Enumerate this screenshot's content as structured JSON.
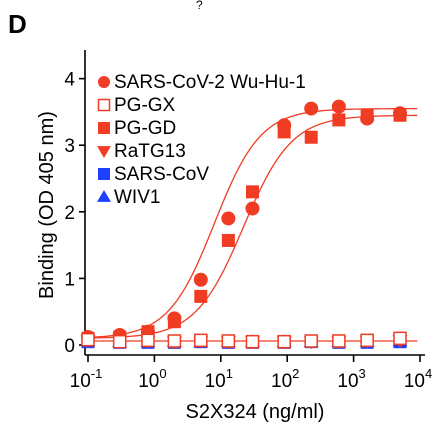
{
  "panel_label": "D",
  "top_fragment": "?",
  "chart_data": {
    "type": "scatter",
    "title": "",
    "xlabel": "S2X324 (ng/ml)",
    "ylabel": "Binding (OD 405 nm)",
    "xscale": "log",
    "xlim": [
      0.1,
      10000
    ],
    "ylim": [
      0,
      4.4
    ],
    "x_ticks": [
      0.1,
      1,
      10,
      100,
      1000,
      10000
    ],
    "x_tick_labels": [
      {
        "base": "10",
        "exp": "-1"
      },
      {
        "base": "10",
        "exp": "0"
      },
      {
        "base": "10",
        "exp": "1"
      },
      {
        "base": "10",
        "exp": "2"
      },
      {
        "base": "10",
        "exp": "3"
      },
      {
        "base": "10",
        "exp": "4"
      }
    ],
    "y_ticks": [
      0,
      1,
      2,
      3,
      4
    ],
    "y_tick_labels": [
      "0",
      "1",
      "2",
      "3",
      "4"
    ],
    "grid": false,
    "legend_position": "top-left",
    "x": [
      0.1,
      0.3,
      0.8,
      2,
      5,
      13,
      30,
      90,
      230,
      600,
      1600,
      5000
    ],
    "series": [
      {
        "name": "SARS-CoV-2 Wu-Hu-1",
        "marker": "circle",
        "filled": true,
        "color": "#f03c23",
        "y": [
          0.12,
          0.15,
          0.2,
          0.4,
          0.98,
          1.9,
          2.05,
          3.3,
          3.55,
          3.58,
          3.4,
          3.48
        ]
      },
      {
        "name": "PG-GX",
        "marker": "square",
        "filled": false,
        "color": "#f03c23",
        "y": [
          0.08,
          0.05,
          0.07,
          0.06,
          0.07,
          0.06,
          0.05,
          0.05,
          0.06,
          0.06,
          0.07,
          0.1
        ]
      },
      {
        "name": "PG-GD",
        "marker": "square",
        "filled": true,
        "color": "#f03c23",
        "y": [
          0.1,
          0.12,
          0.2,
          0.35,
          0.73,
          1.57,
          2.3,
          3.2,
          3.12,
          3.38,
          3.45,
          3.45
        ]
      },
      {
        "name": "RaTG13",
        "marker": "triangle-down",
        "filled": true,
        "color": "#f03c23",
        "y": [
          0.07,
          0.06,
          0.06,
          0.05,
          0.06,
          0.05,
          0.05,
          0.05,
          0.05,
          0.05,
          0.06,
          0.07
        ]
      },
      {
        "name": "SARS-CoV",
        "marker": "square",
        "filled": true,
        "color": "#1f3fff",
        "y": [
          0.05,
          0.04,
          0.04,
          0.04,
          0.05,
          0.04,
          0.04,
          0.04,
          0.05,
          0.04,
          0.04,
          0.05
        ]
      },
      {
        "name": "WIV1",
        "marker": "triangle-up",
        "filled": true,
        "color": "#1f3fff",
        "y": [
          0.06,
          0.05,
          0.05,
          0.05,
          0.05,
          0.05,
          0.05,
          0.05,
          0.05,
          0.05,
          0.05,
          0.06
        ]
      }
    ],
    "fit_curves": [
      {
        "series": "SARS-CoV-2 Wu-Hu-1",
        "bottom": 0.1,
        "top": 3.55,
        "ec50": 8,
        "hill": 1.25,
        "color": "#f03c23"
      },
      {
        "series": "PG-GD",
        "bottom": 0.1,
        "top": 3.45,
        "ec50": 22,
        "hill": 1.2,
        "color": "#f03c23"
      },
      {
        "series": "baseline",
        "bottom": 0.06,
        "top": 0.06,
        "ec50": 10,
        "hill": 1,
        "color": "#f03c23"
      }
    ]
  }
}
